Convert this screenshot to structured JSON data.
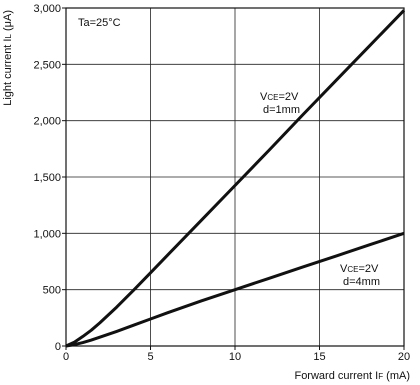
{
  "chart_data": {
    "type": "line",
    "xlabel": {
      "main": "Forward current I",
      "sub": "F",
      "unit": " (mA)"
    },
    "ylabel": {
      "main": "Light current I",
      "sub": "L",
      "unit": " (μA)"
    },
    "xlim": [
      0,
      20
    ],
    "ylim": [
      0,
      3000
    ],
    "x_ticks": [
      0,
      5,
      10,
      15,
      20
    ],
    "y_ticks": [
      0,
      500,
      1000,
      1500,
      2000,
      2500,
      3000
    ],
    "x_tick_labels": [
      "0",
      "5",
      "10",
      "15",
      "20"
    ],
    "y_tick_labels": [
      "0",
      "500",
      "1,000",
      "1,500",
      "2,000",
      "2,500",
      "3,000"
    ],
    "grid": true,
    "annotation": "Ta=25°C",
    "series": [
      {
        "label": {
          "v": "V",
          "sub": "CE",
          "rest": "=2V",
          "line2": "d=1mm"
        },
        "x": [
          0,
          0.5,
          1,
          1.5,
          2,
          3,
          4,
          5,
          6,
          8,
          10,
          12,
          14,
          16,
          18,
          20
        ],
        "y": [
          0,
          35,
          85,
          140,
          205,
          345,
          495,
          650,
          805,
          1115,
          1425,
          1735,
          2050,
          2360,
          2670,
          2980
        ]
      },
      {
        "label": {
          "v": "V",
          "sub": "CE",
          "rest": "=2V",
          "line2": "d=4mm"
        },
        "x": [
          0,
          0.5,
          1,
          1.5,
          2,
          3,
          4,
          5,
          6,
          8,
          10,
          12,
          14,
          16,
          18,
          20
        ],
        "y": [
          0,
          12,
          30,
          52,
          78,
          130,
          185,
          240,
          295,
          400,
          500,
          600,
          700,
          800,
          900,
          1000
        ]
      }
    ]
  }
}
